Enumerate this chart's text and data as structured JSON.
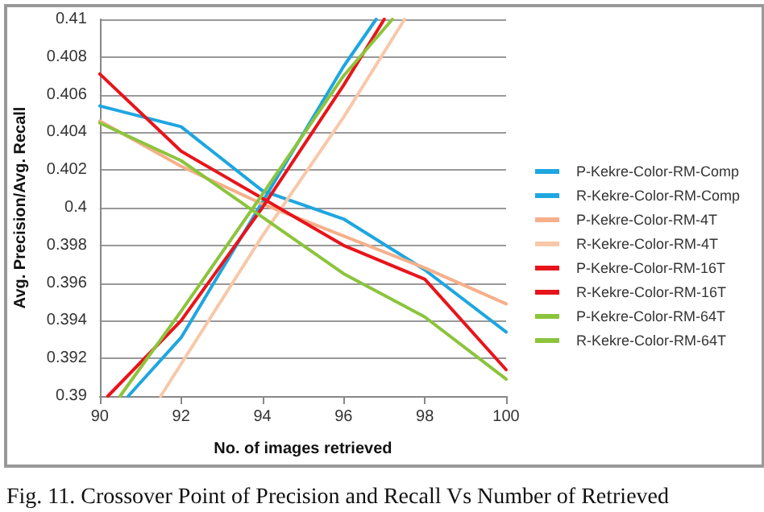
{
  "chart_data": {
    "type": "line",
    "xlabel": "No. of images retrieved",
    "ylabel": "Avg. Precision/Avg. Recall",
    "annotations": [
      "Fig. 11. Crossover Point of Precision and Recall Vs Number of Retrieved"
    ],
    "xlim": [
      90,
      100
    ],
    "xticks": [
      90,
      92,
      94,
      96,
      98,
      100
    ],
    "ylim": [
      0.39,
      0.41
    ],
    "yticks": [
      0.39,
      0.392,
      0.394,
      0.396,
      0.398,
      0.4,
      0.402,
      0.404,
      0.406,
      0.408,
      0.41
    ],
    "grid": "y",
    "legend": "right",
    "marker": "none",
    "line_style": "solid",
    "series": [
      {
        "name": "P-Kekre-Color-RM-Comp",
        "color": "#1ea6e0",
        "x": [
          90,
          92,
          94,
          96,
          98,
          100
        ],
        "values": [
          0.4054,
          0.4043,
          0.4009,
          0.3994,
          0.3967,
          0.3934
        ]
      },
      {
        "name": "R-Kekre-Color-RM-Comp",
        "color": "#1ea6e0",
        "x": [
          90.7,
          92,
          94,
          96,
          96.8
        ],
        "values": [
          0.39,
          0.3931,
          0.4003,
          0.4075,
          0.41
        ]
      },
      {
        "name": "P-Kekre-Color-RM-4T",
        "color": "#f5b08a",
        "x": [
          90,
          92,
          94,
          96,
          98,
          100
        ],
        "values": [
          0.4046,
          0.4022,
          0.4002,
          0.3985,
          0.3968,
          0.3949
        ]
      },
      {
        "name": "R-Kekre-Color-RM-4T",
        "color": "#f8c8a8",
        "x": [
          91.5,
          94,
          96,
          97.5
        ],
        "values": [
          0.39,
          0.3985,
          0.4048,
          0.41
        ]
      },
      {
        "name": "P-Kekre-Color-RM-16T",
        "color": "#e8141b",
        "x": [
          90,
          92,
          94,
          96,
          98,
          100
        ],
        "values": [
          0.4071,
          0.403,
          0.4005,
          0.398,
          0.3962,
          0.3914
        ]
      },
      {
        "name": "R-Kekre-Color-RM-16T",
        "color": "#e8141b",
        "x": [
          90.2,
          92,
          94,
          96,
          97
        ],
        "values": [
          0.39,
          0.394,
          0.4,
          0.4065,
          0.41
        ]
      },
      {
        "name": "P-Kekre-Color-RM-64T",
        "color": "#8cc43c",
        "x": [
          90,
          92,
          94,
          96,
          98,
          100
        ],
        "values": [
          0.4045,
          0.4025,
          0.3995,
          0.3965,
          0.3942,
          0.3909
        ]
      },
      {
        "name": "R-Kekre-Color-RM-64T",
        "color": "#8cc43c",
        "x": [
          90.5,
          92,
          94,
          96,
          97.2
        ],
        "values": [
          0.39,
          0.3945,
          0.4007,
          0.407,
          0.41
        ]
      }
    ]
  }
}
